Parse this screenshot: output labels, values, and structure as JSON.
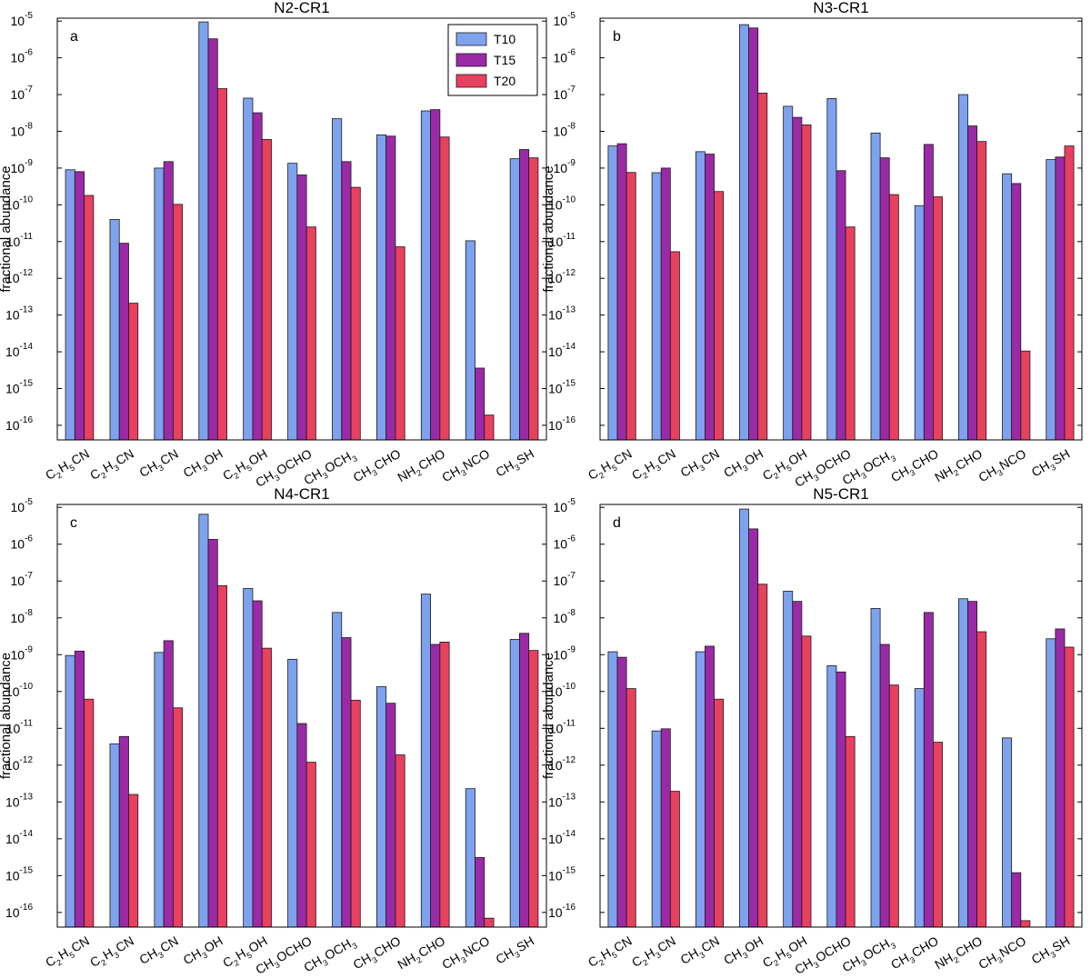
{
  "colors": {
    "T10": "#7fa2ee",
    "T15": "#9b2aa6",
    "T20": "#e8405f"
  },
  "chart_data": [
    {
      "type": "bar",
      "title": "N2-CR1",
      "panel_label": "a",
      "ylabel": "fractional abundance",
      "yscale": "log",
      "ylim": [
        4e-17,
        1.2e-05
      ],
      "grid": false,
      "legend": "top-right",
      "categories": [
        "C2H5CN",
        "C2H3CN",
        "CH3CN",
        "CH3OH",
        "C2H5OH",
        "CH3OCHO",
        "CH3OCH3",
        "CH3CHO",
        "NH2CHO",
        "CH3NCO",
        "CH3SH"
      ],
      "series": [
        {
          "name": "T10",
          "values": [
            9e-10,
            4e-11,
            1e-09,
            9.5e-06,
            8e-08,
            1.35e-09,
            2.2e-08,
            8e-09,
            3.6e-08,
            1.05e-11,
            1.8e-09
          ]
        },
        {
          "name": "T15",
          "values": [
            8e-10,
            9e-12,
            1.5e-09,
            3.3e-06,
            3.2e-08,
            6.5e-10,
            1.5e-09,
            7.4e-09,
            3.9e-08,
            3.6e-15,
            3.2e-09
          ]
        },
        {
          "name": "T20",
          "values": [
            1.8e-10,
            2.1e-13,
            1.03e-10,
            1.45e-07,
            6e-09,
            2.5e-11,
            3e-10,
            7.2e-12,
            7e-09,
            1.9e-16,
            1.9e-09
          ]
        }
      ]
    },
    {
      "type": "bar",
      "title": "N3-CR1",
      "panel_label": "b",
      "ylabel": "fractional abundance",
      "yscale": "log",
      "ylim": [
        4e-17,
        1.2e-05
      ],
      "grid": false,
      "categories": [
        "C2H5CN",
        "C2H3CN",
        "CH3CN",
        "CH3OH",
        "C2H5OH",
        "CH3OCHO",
        "CH3OCH3",
        "CH3CHO",
        "NH2CHO",
        "CH3NCO",
        "CH3SH"
      ],
      "series": [
        {
          "name": "T10",
          "values": [
            4e-09,
            7.5e-10,
            2.8e-09,
            8e-06,
            4.8e-08,
            7.8e-08,
            9e-09,
            9.5e-11,
            1e-07,
            7e-10,
            1.7e-09
          ]
        },
        {
          "name": "T15",
          "values": [
            4.6e-09,
            1e-09,
            2.4e-09,
            6.5e-06,
            2.4e-08,
            8.5e-10,
            1.9e-09,
            4.4e-09,
            1.4e-08,
            3.8e-10,
            2e-09
          ]
        },
        {
          "name": "T20",
          "values": [
            7.6e-10,
            5.3e-12,
            2.3e-10,
            1.1e-07,
            1.5e-08,
            2.5e-11,
            1.9e-10,
            1.65e-10,
            5.3e-09,
            1.05e-14,
            4e-09
          ]
        }
      ]
    },
    {
      "type": "bar",
      "title": "N4-CR1",
      "panel_label": "c",
      "ylabel": "fractional abundance",
      "yscale": "log",
      "ylim": [
        4e-17,
        1.2e-05
      ],
      "grid": false,
      "categories": [
        "C2H5CN",
        "C2H3CN",
        "CH3CN",
        "CH3OH",
        "C2H5OH",
        "CH3OCHO",
        "CH3OCH3",
        "CH3CHO",
        "NH2CHO",
        "CH3NCO",
        "CH3SH"
      ],
      "series": [
        {
          "name": "T10",
          "values": [
            9.5e-10,
            3.8e-12,
            1.15e-09,
            6.5e-06,
            6.3e-08,
            7.5e-10,
            1.4e-08,
            1.35e-10,
            4.4e-08,
            2.3e-13,
            2.6e-09
          ]
        },
        {
          "name": "T15",
          "values": [
            1.25e-09,
            6e-12,
            2.4e-09,
            1.35e-06,
            2.9e-08,
            1.35e-11,
            2.9e-09,
            4.8e-11,
            1.9e-09,
            3.1e-15,
            3.8e-09
          ]
        },
        {
          "name": "T20",
          "values": [
            6.2e-11,
            1.6e-13,
            3.6e-11,
            7.5e-08,
            1.5e-09,
            1.2e-12,
            5.8e-11,
            1.9e-12,
            2.2e-09,
            7e-17,
            1.3e-09
          ]
        }
      ]
    },
    {
      "type": "bar",
      "title": "N5-CR1",
      "panel_label": "d",
      "ylabel": "fractional abundance",
      "yscale": "log",
      "ylim": [
        4e-17,
        1.2e-05
      ],
      "grid": false,
      "categories": [
        "C2H5CN",
        "C2H3CN",
        "CH3CN",
        "CH3OH",
        "C2H5OH",
        "CH3OCHO",
        "CH3OCH3",
        "CH3CHO",
        "NH2CHO",
        "CH3NCO",
        "CH3SH"
      ],
      "series": [
        {
          "name": "T10",
          "values": [
            1.2e-09,
            8.5e-12,
            1.2e-09,
            9e-06,
            5.3e-08,
            5e-10,
            1.8e-08,
            1.2e-10,
            3.3e-08,
            5.5e-12,
            2.7e-09
          ]
        },
        {
          "name": "T15",
          "values": [
            8.5e-10,
            9.7e-12,
            1.7e-09,
            2.6e-06,
            2.8e-08,
            3.4e-10,
            1.9e-09,
            1.4e-08,
            2.8e-08,
            1.2e-15,
            5e-09
          ]
        },
        {
          "name": "T20",
          "values": [
            1.2e-10,
            1.95e-13,
            6.2e-11,
            8.2e-08,
            3.2e-09,
            6e-12,
            1.5e-10,
            4.2e-12,
            4.2e-09,
            6e-17,
            1.6e-09
          ]
        }
      ]
    }
  ],
  "category_parts": [
    [
      [
        "C",
        "2"
      ],
      [
        "H",
        "5"
      ],
      [
        "CN",
        ""
      ]
    ],
    [
      [
        "C",
        "2"
      ],
      [
        "H",
        "3"
      ],
      [
        "CN",
        ""
      ]
    ],
    [
      [
        "CH",
        "3"
      ],
      [
        "CN",
        ""
      ]
    ],
    [
      [
        "CH",
        "3"
      ],
      [
        "OH",
        ""
      ]
    ],
    [
      [
        "C",
        "2"
      ],
      [
        "H",
        "5"
      ],
      [
        "OH",
        ""
      ]
    ],
    [
      [
        "CH",
        "3"
      ],
      [
        "OCHO",
        ""
      ]
    ],
    [
      [
        "CH",
        "3"
      ],
      [
        "OCH",
        "3"
      ]
    ],
    [
      [
        "CH",
        "3"
      ],
      [
        "CHO",
        ""
      ]
    ],
    [
      [
        "NH",
        "2"
      ],
      [
        "CHO",
        ""
      ]
    ],
    [
      [
        "CH",
        "3"
      ],
      [
        "NCO",
        ""
      ]
    ],
    [
      [
        "CH",
        "3"
      ],
      [
        "SH",
        ""
      ]
    ]
  ],
  "ytick_exponents": [
    -16,
    -15,
    -14,
    -13,
    -12,
    -11,
    -10,
    -9,
    -8,
    -7,
    -6,
    -5
  ],
  "ytick_base": "10"
}
